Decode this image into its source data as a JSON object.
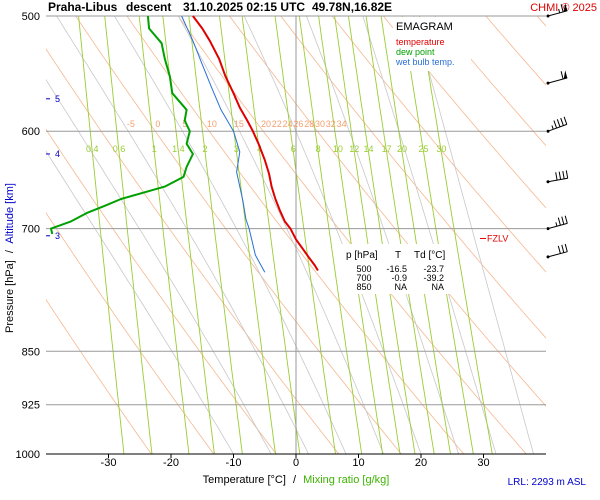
{
  "header": {
    "station": "Praha-Libus",
    "mode": "descent",
    "datetime": "31.10.2025 02:15 UTC",
    "coords": "49.78N,16.82E",
    "brand": "CHMI © 2025"
  },
  "axes": {
    "ylabel_pressure": "Pressure [hPa]",
    "ylabel_sep": "/",
    "ylabel_altitude": "Altitude [km]",
    "xlabel_temp": "Temperature [°C]",
    "xlabel_sep": "/",
    "xlabel_mixing": "Mixing ratio [g/kg]"
  },
  "footer": {
    "lrl": "LRL: 2293 m ASL"
  },
  "legend": {
    "title": "EMAGRAM",
    "items": [
      {
        "label": "temperature",
        "color": "#e00000"
      },
      {
        "label": "dew point",
        "color": "#00a000"
      },
      {
        "label": "wet bulb temp.",
        "color": "#2a6fd6"
      }
    ]
  },
  "fzlv_label": "FZLV",
  "table": {
    "headers": [
      "p [hPa]",
      "T",
      "Td [°C]"
    ],
    "rows": [
      [
        "500",
        "-16.5",
        "-23.7"
      ],
      [
        "700",
        "-0.9",
        "-39.2"
      ],
      [
        "850",
        "NA",
        "NA"
      ]
    ]
  },
  "chart_data": {
    "type": "line",
    "xlim": [
      -40,
      40
    ],
    "ylim_hpa": [
      1000,
      500
    ],
    "y_scale": "log",
    "pressure_ticks": [
      500,
      600,
      700,
      850,
      925,
      1000
    ],
    "temp_ticks": [
      -30,
      -20,
      -10,
      0,
      10,
      20,
      30
    ],
    "altitude_ticks_km": [
      {
        "km": "5",
        "p": 570
      },
      {
        "km": "4",
        "p": 622
      },
      {
        "km": "3",
        "p": 708
      }
    ],
    "mixing_ratio_labels": [
      "0.4",
      "0.6",
      "1",
      "1.4",
      "2",
      "3",
      "4",
      "6",
      "8",
      "10",
      "12",
      "14",
      "17",
      "20",
      "25",
      "30"
    ],
    "theta_labels": [
      "-5",
      "0",
      "5",
      "10",
      "15",
      "20",
      "22",
      "24",
      "26",
      "28",
      "30",
      "32",
      "34"
    ],
    "series": [
      {
        "name": "temperature",
        "color": "#e00000",
        "points": [
          [
            -16.5,
            500
          ],
          [
            -15.0,
            510
          ],
          [
            -13.8,
            520
          ],
          [
            -12.3,
            535
          ],
          [
            -11.3,
            550
          ],
          [
            -10.0,
            565
          ],
          [
            -9.0,
            578
          ],
          [
            -7.8,
            590
          ],
          [
            -6.9,
            600
          ],
          [
            -6.0,
            612
          ],
          [
            -5.0,
            628
          ],
          [
            -4.3,
            642
          ],
          [
            -3.9,
            655
          ],
          [
            -3.3,
            668
          ],
          [
            -2.6,
            680
          ],
          [
            -1.8,
            692
          ],
          [
            -0.9,
            700
          ],
          [
            0.0,
            712
          ],
          [
            1.0,
            722
          ],
          [
            2.0,
            732
          ],
          [
            3.0,
            742
          ],
          [
            3.5,
            748
          ]
        ]
      },
      {
        "name": "dew point",
        "color": "#00a000",
        "points": [
          [
            -23.7,
            500
          ],
          [
            -23.5,
            510
          ],
          [
            -21.5,
            522
          ],
          [
            -21.0,
            535
          ],
          [
            -20.2,
            550
          ],
          [
            -19.8,
            565
          ],
          [
            -17.5,
            580
          ],
          [
            -17.8,
            590
          ],
          [
            -17.0,
            600
          ],
          [
            -17.5,
            612
          ],
          [
            -16.5,
            622
          ],
          [
            -17.5,
            635
          ],
          [
            -18.0,
            645
          ],
          [
            -21.0,
            655
          ],
          [
            -28.0,
            668
          ],
          [
            -30.5,
            675
          ],
          [
            -33.5,
            683
          ],
          [
            -36.0,
            692
          ],
          [
            -39.2,
            700
          ],
          [
            -39.0,
            706
          ]
        ]
      },
      {
        "name": "wet bulb temp.",
        "color": "#2a6fd6",
        "points": [
          [
            -18.3,
            500
          ],
          [
            -16.5,
            520
          ],
          [
            -15.0,
            540
          ],
          [
            -13.5,
            560
          ],
          [
            -12.0,
            580
          ],
          [
            -10.0,
            600
          ],
          [
            -9.0,
            620
          ],
          [
            -9.5,
            640
          ],
          [
            -9.0,
            655
          ],
          [
            -8.5,
            670
          ],
          [
            -8.0,
            690
          ],
          [
            -7.5,
            700
          ],
          [
            -7.0,
            715
          ],
          [
            -6.5,
            730
          ],
          [
            -5.0,
            750
          ]
        ]
      }
    ],
    "fzlv_hpa": 711,
    "wind_barbs": [
      {
        "p": 500,
        "dir": 255,
        "kt": 65
      },
      {
        "p": 556,
        "dir": 255,
        "kt": 60
      },
      {
        "p": 600,
        "dir": 250,
        "kt": 45
      },
      {
        "p": 650,
        "dir": 260,
        "kt": 40
      },
      {
        "p": 700,
        "dir": 255,
        "kt": 35
      },
      {
        "p": 732,
        "dir": 255,
        "kt": 30
      }
    ]
  }
}
